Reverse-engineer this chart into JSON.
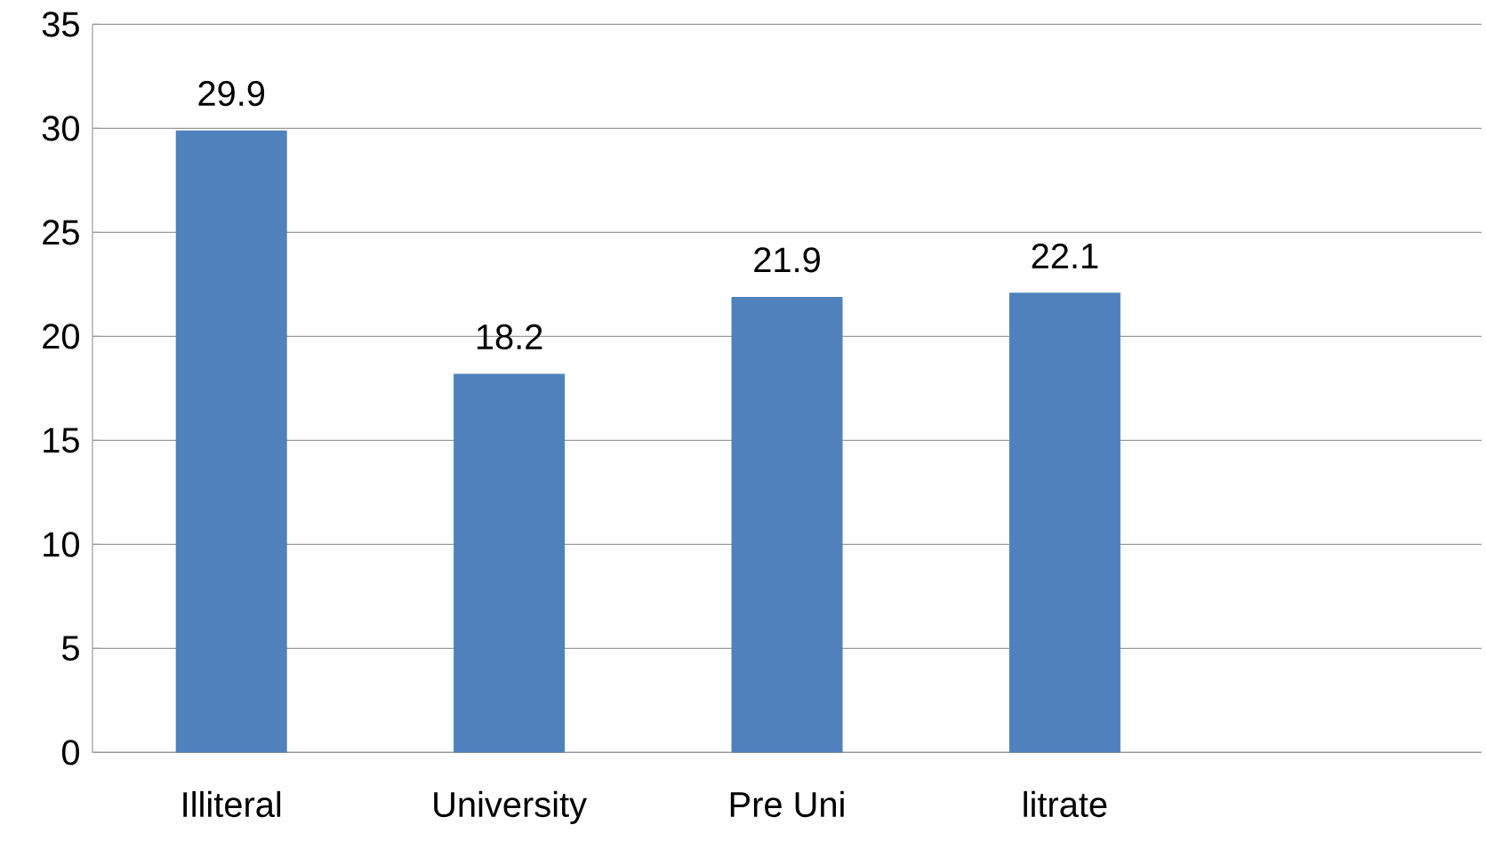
{
  "chart_data": {
    "type": "bar",
    "categories": [
      "Illiteral",
      "University",
      "Pre Uni",
      "litrate",
      null
    ],
    "values": [
      29.9,
      18.2,
      21.9,
      22.1,
      null
    ],
    "color": "#4f81bd",
    "ylim": [
      0,
      35
    ],
    "yticks": [
      0,
      5,
      10,
      15,
      20,
      25,
      30,
      35
    ],
    "grid": "y",
    "data_labels": true
  }
}
